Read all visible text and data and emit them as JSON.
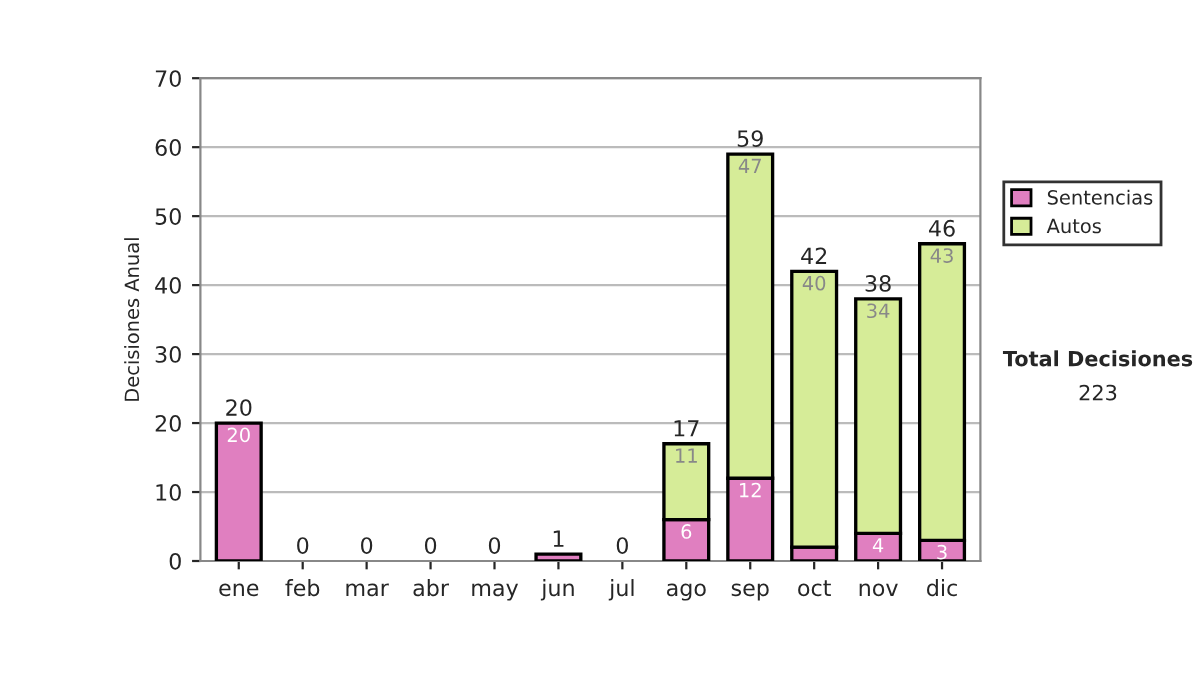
{
  "chart_data": {
    "type": "bar",
    "stacked": true,
    "ylabel": "Decisiones Anual",
    "categories": [
      "ene",
      "feb",
      "mar",
      "abr",
      "may",
      "jun",
      "jul",
      "ago",
      "sep",
      "oct",
      "nov",
      "dic"
    ],
    "series": [
      {
        "name": "Sentencias",
        "color": "#e07fc0",
        "values": [
          20,
          0,
          0,
          0,
          0,
          1,
          0,
          6,
          12,
          2,
          4,
          3
        ],
        "value_labels": [
          "20",
          null,
          null,
          null,
          null,
          null,
          null,
          "6",
          "12",
          null,
          "4",
          "3"
        ]
      },
      {
        "name": "Autos",
        "color": "#d6ec98",
        "values": [
          0,
          0,
          0,
          0,
          0,
          0,
          0,
          11,
          47,
          40,
          34,
          43
        ],
        "value_labels": [
          null,
          null,
          null,
          null,
          null,
          null,
          null,
          "11",
          "47",
          "40",
          "34",
          "43"
        ]
      }
    ],
    "totals": [
      "20",
      "0",
      "0",
      "0",
      "0",
      "1",
      "0",
      "17",
      "59",
      "42",
      "38",
      "46"
    ],
    "ylim": [
      0,
      70
    ],
    "yticks": [
      0,
      10,
      20,
      30,
      40,
      50,
      60,
      70
    ],
    "grid": "y",
    "legend": "right",
    "annotations": [
      "Total Decisiones",
      "223"
    ]
  }
}
